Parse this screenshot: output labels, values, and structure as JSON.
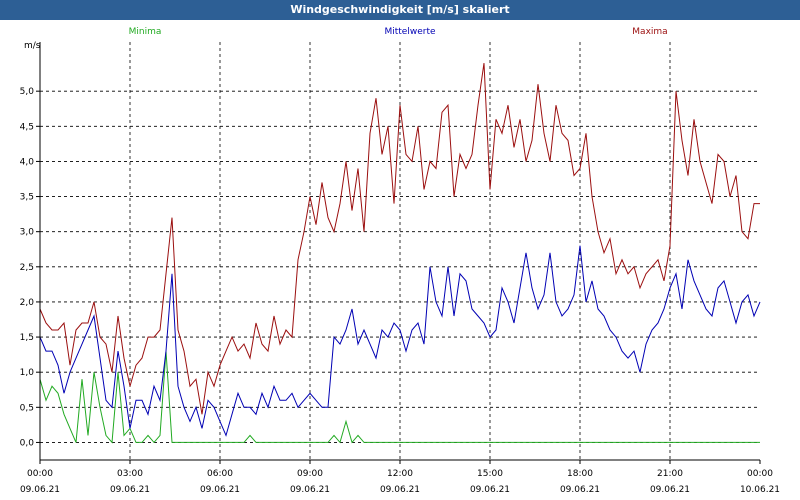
{
  "title": "Windgeschwindigkeit [m/s] skaliert",
  "colors": {
    "title_bar": "#2d5f95",
    "minima": "#22aa22",
    "mean": "#0000b4",
    "maxima": "#9b0f0f"
  },
  "chart_data": {
    "type": "line",
    "ylabel": "m/s",
    "ylim": [
      -0.25,
      5.7
    ],
    "yticks": [
      {
        "value": 0.0,
        "label": "0,0"
      },
      {
        "value": 0.5,
        "label": "0,5"
      },
      {
        "value": 1.0,
        "label": "1,0"
      },
      {
        "value": 1.5,
        "label": "1,5"
      },
      {
        "value": 2.0,
        "label": "2,0"
      },
      {
        "value": 2.5,
        "label": "2,5"
      },
      {
        "value": 3.0,
        "label": "3,0"
      },
      {
        "value": 3.5,
        "label": "3,5"
      },
      {
        "value": 4.0,
        "label": "4,0"
      },
      {
        "value": 4.5,
        "label": "4,5"
      },
      {
        "value": 5.0,
        "label": "5,0"
      }
    ],
    "xlim": [
      0,
      24
    ],
    "xticks": [
      {
        "value": 0,
        "time": "00:00",
        "date": "09.06.21"
      },
      {
        "value": 3,
        "time": "03:00",
        "date": "09.06.21"
      },
      {
        "value": 6,
        "time": "06:00",
        "date": "09.06.21"
      },
      {
        "value": 9,
        "time": "09:00",
        "date": "09.06.21"
      },
      {
        "value": 12,
        "time": "12:00",
        "date": "09.06.21"
      },
      {
        "value": 15,
        "time": "15:00",
        "date": "09.06.21"
      },
      {
        "value": 18,
        "time": "18:00",
        "date": "09.06.21"
      },
      {
        "value": 21,
        "time": "21:00",
        "date": "09.06.21"
      },
      {
        "value": 24,
        "time": "00:00",
        "date": "10.06.21"
      }
    ],
    "grid": true,
    "legend": [
      {
        "name": "Minima",
        "series": 0,
        "position": "left"
      },
      {
        "name": "Mittelwerte",
        "series": 1,
        "position": "center"
      },
      {
        "name": "Maxima",
        "series": 2,
        "position": "right"
      }
    ],
    "x": [
      0,
      0.2,
      0.4,
      0.6,
      0.8,
      1,
      1.2,
      1.4,
      1.6,
      1.8,
      2,
      2.2,
      2.4,
      2.6,
      2.8,
      3,
      3.2,
      3.4,
      3.6,
      3.8,
      4,
      4.2,
      4.4,
      4.6,
      4.8,
      5,
      5.2,
      5.4,
      5.6,
      5.8,
      6,
      6.2,
      6.4,
      6.6,
      6.8,
      7,
      7.2,
      7.4,
      7.6,
      7.8,
      8,
      8.2,
      8.4,
      8.6,
      8.8,
      9,
      9.2,
      9.4,
      9.6,
      9.8,
      10,
      10.2,
      10.4,
      10.6,
      10.8,
      11,
      11.2,
      11.4,
      11.6,
      11.8,
      12,
      12.2,
      12.4,
      12.6,
      12.8,
      13,
      13.2,
      13.4,
      13.6,
      13.8,
      14,
      14.2,
      14.4,
      14.6,
      14.8,
      15,
      15.2,
      15.4,
      15.6,
      15.8,
      16,
      16.2,
      16.4,
      16.6,
      16.8,
      17,
      17.2,
      17.4,
      17.6,
      17.8,
      18,
      18.2,
      18.4,
      18.6,
      18.8,
      19,
      19.2,
      19.4,
      19.6,
      19.8,
      20,
      20.2,
      20.4,
      20.6,
      20.8,
      21,
      21.2,
      21.4,
      21.6,
      21.8,
      22,
      22.2,
      22.4,
      22.6,
      22.8,
      23,
      23.2,
      23.4,
      23.6,
      23.8,
      24
    ],
    "series": [
      {
        "name": "Minima",
        "color": "#22aa22",
        "values": [
          0.9,
          0.6,
          0.8,
          0.7,
          0.4,
          0.2,
          0.0,
          0.9,
          0.1,
          1.0,
          0.5,
          0.1,
          0.0,
          1.0,
          0.1,
          0.2,
          0.0,
          0.0,
          0.1,
          0.0,
          0.1,
          1.3,
          0.0,
          0.0,
          0.0,
          0.0,
          0.0,
          0.0,
          0.0,
          0.0,
          0.0,
          0.0,
          0.0,
          0.0,
          0.0,
          0.1,
          0.0,
          0.0,
          0.0,
          0.0,
          0.0,
          0.0,
          0.0,
          0.0,
          0.0,
          0.0,
          0.0,
          0.0,
          0.0,
          0.1,
          0.0,
          0.3,
          0.0,
          0.1,
          0.0,
          0.0,
          0.0,
          0.0,
          0.0,
          0.0,
          0.0,
          0.0,
          0.0,
          0.0,
          0.0,
          0.0,
          0.0,
          0.0,
          0.0,
          0.0,
          0.0,
          0.0,
          0.0,
          0.0,
          0.0,
          0.0,
          0.0,
          0.0,
          0.0,
          0.0,
          0.0,
          0.0,
          0.0,
          0.0,
          0.0,
          0.0,
          0.0,
          0.0,
          0.0,
          0.0,
          0.0,
          0.0,
          0.0,
          0.0,
          0.0,
          0.0,
          0.0,
          0.0,
          0.0,
          0.0,
          0.0,
          0.0,
          0.0,
          0.0,
          0.0,
          0.0,
          0.0,
          0.0,
          0.0,
          0.0,
          0.0,
          0.0,
          0.0,
          0.0,
          0.0,
          0.0,
          0.0,
          0.0,
          0.0,
          0.0,
          0.0
        ]
      },
      {
        "name": "Mittelwerte",
        "color": "#0000b4",
        "values": [
          1.5,
          1.3,
          1.3,
          1.1,
          0.7,
          1.0,
          1.2,
          1.4,
          1.6,
          1.8,
          1.2,
          0.6,
          0.5,
          1.3,
          0.8,
          0.2,
          0.6,
          0.6,
          0.4,
          0.8,
          0.6,
          1.3,
          2.4,
          0.8,
          0.5,
          0.3,
          0.5,
          0.2,
          0.6,
          0.5,
          0.3,
          0.1,
          0.4,
          0.7,
          0.5,
          0.5,
          0.4,
          0.7,
          0.5,
          0.8,
          0.6,
          0.6,
          0.7,
          0.5,
          0.6,
          0.7,
          0.6,
          0.5,
          0.5,
          1.5,
          1.4,
          1.6,
          1.9,
          1.4,
          1.6,
          1.4,
          1.2,
          1.6,
          1.5,
          1.7,
          1.6,
          1.3,
          1.6,
          1.7,
          1.4,
          2.5,
          2.0,
          1.8,
          2.5,
          1.8,
          2.4,
          2.3,
          1.9,
          1.8,
          1.7,
          1.5,
          1.6,
          2.2,
          2.0,
          1.7,
          2.2,
          2.7,
          2.2,
          1.9,
          2.1,
          2.7,
          2.0,
          1.8,
          1.9,
          2.1,
          2.8,
          2.0,
          2.3,
          1.9,
          1.8,
          1.6,
          1.5,
          1.3,
          1.2,
          1.3,
          1.0,
          1.4,
          1.6,
          1.7,
          1.9,
          2.2,
          2.4,
          1.9,
          2.6,
          2.3,
          2.1,
          1.9,
          1.8,
          2.2,
          2.3,
          2.0,
          1.7,
          2.0,
          2.1,
          1.8,
          2.0
        ]
      },
      {
        "name": "Maxima",
        "color": "#9b0f0f",
        "values": [
          1.9,
          1.7,
          1.6,
          1.6,
          1.7,
          1.1,
          1.6,
          1.7,
          1.7,
          2.0,
          1.5,
          1.4,
          1.0,
          1.8,
          1.2,
          0.8,
          1.1,
          1.2,
          1.5,
          1.5,
          1.6,
          2.4,
          3.2,
          1.6,
          1.3,
          0.8,
          0.9,
          0.4,
          1.0,
          0.8,
          1.1,
          1.3,
          1.5,
          1.3,
          1.4,
          1.2,
          1.7,
          1.4,
          1.3,
          1.8,
          1.4,
          1.6,
          1.5,
          2.6,
          3.0,
          3.5,
          3.1,
          3.7,
          3.2,
          3.0,
          3.4,
          4.0,
          3.3,
          3.9,
          3.0,
          4.4,
          4.9,
          4.1,
          4.5,
          3.4,
          4.8,
          4.1,
          4.0,
          4.5,
          3.6,
          4.0,
          3.9,
          4.7,
          4.8,
          3.5,
          4.1,
          3.9,
          4.1,
          4.8,
          5.4,
          3.6,
          4.6,
          4.4,
          4.8,
          4.2,
          4.6,
          4.0,
          4.3,
          5.1,
          4.4,
          4.0,
          4.8,
          4.4,
          4.3,
          3.8,
          3.9,
          4.4,
          3.5,
          3.0,
          2.7,
          2.9,
          2.4,
          2.6,
          2.4,
          2.5,
          2.2,
          2.4,
          2.5,
          2.6,
          2.3,
          2.8,
          5.0,
          4.3,
          3.8,
          4.6,
          4.0,
          3.7,
          3.4,
          4.1,
          4.0,
          3.5,
          3.8,
          3.0,
          2.9,
          3.4,
          3.4
        ]
      }
    ]
  }
}
